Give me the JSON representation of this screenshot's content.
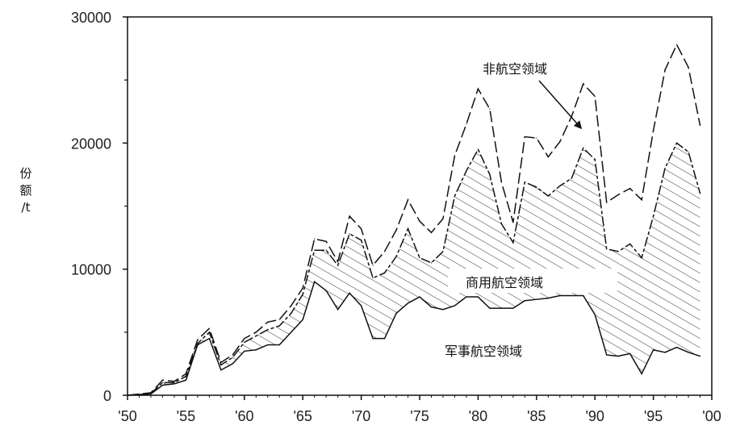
{
  "chart_data": {
    "type": "area",
    "title": "",
    "ylabel": [
      "份",
      "额",
      "/t"
    ],
    "xlabel": "",
    "xlim": [
      1950,
      2000
    ],
    "ylim": [
      0,
      30000
    ],
    "x_ticks": [
      1950,
      1955,
      1960,
      1965,
      1970,
      1975,
      1980,
      1985,
      1990,
      1995,
      2000
    ],
    "x_tick_labels": [
      "'50",
      "'55",
      "'60",
      "'65",
      "'70",
      "'75",
      "'80",
      "'85",
      "'90",
      "'95",
      "'00"
    ],
    "y_ticks": [
      0,
      10000,
      20000,
      30000
    ],
    "y_tick_labels": [
      "0",
      "10000",
      "20000",
      "30000"
    ],
    "grid": false,
    "x": [
      1950,
      1951,
      1952,
      1953,
      1954,
      1955,
      1956,
      1957,
      1958,
      1959,
      1960,
      1961,
      1962,
      1963,
      1964,
      1965,
      1966,
      1967,
      1968,
      1969,
      1970,
      1971,
      1972,
      1973,
      1974,
      1975,
      1976,
      1977,
      1978,
      1979,
      1980,
      1981,
      1982,
      1983,
      1984,
      1985,
      1986,
      1987,
      1988,
      1989,
      1990,
      1991,
      1992,
      1993,
      1994,
      1995,
      1996,
      1997,
      1998,
      1999
    ],
    "series": [
      {
        "name": "军事航空领域",
        "style": "solid",
        "values": [
          0,
          50,
          100,
          800,
          900,
          1200,
          4000,
          4500,
          2000,
          2500,
          3500,
          3600,
          4000,
          4000,
          5000,
          6000,
          9000,
          8300,
          6800,
          8100,
          7100,
          4500,
          4500,
          6500,
          7300,
          7800,
          7000,
          6800,
          7100,
          7800,
          7800,
          6900,
          6900,
          6900,
          7500,
          7600,
          7700,
          7900,
          7900,
          7900,
          6400,
          3200,
          3100,
          3300,
          1700,
          3600,
          3400,
          3800,
          3400,
          3100
        ]
      },
      {
        "name": "商用航空领域",
        "style": "dashed",
        "values": [
          0,
          50,
          150,
          1000,
          1000,
          1500,
          4100,
          5000,
          2400,
          3000,
          4200,
          4700,
          5200,
          5500,
          6500,
          8000,
          11500,
          11500,
          10300,
          12800,
          12300,
          9300,
          9700,
          11000,
          13200,
          10900,
          10500,
          11400,
          15800,
          17800,
          19500,
          17500,
          13600,
          12100,
          16900,
          16500,
          15800,
          16600,
          17200,
          19600,
          18700,
          11600,
          11400,
          12000,
          10900,
          14200,
          18000,
          20000,
          19300,
          16000
        ]
      },
      {
        "name": "非航空领域",
        "style": "dashed",
        "values": [
          0,
          100,
          200,
          1200,
          1100,
          1700,
          4400,
          5300,
          2600,
          3200,
          4500,
          5000,
          5800,
          6000,
          7100,
          8500,
          12400,
          12200,
          10600,
          14200,
          13200,
          10300,
          11400,
          13100,
          15500,
          13800,
          12900,
          14000,
          19000,
          21500,
          24300,
          22700,
          16900,
          13700,
          20500,
          20400,
          18900,
          20100,
          22100,
          24700,
          23700,
          15300,
          15900,
          16400,
          15500,
          21000,
          25800,
          27800,
          26000,
          21400
        ]
      }
    ],
    "annotations": [
      {
        "text": "非航空领域",
        "arrow_to": [
          1988.8,
          21200
        ]
      },
      {
        "text": "商用航空领域"
      },
      {
        "text": "军事航空领域"
      }
    ]
  }
}
